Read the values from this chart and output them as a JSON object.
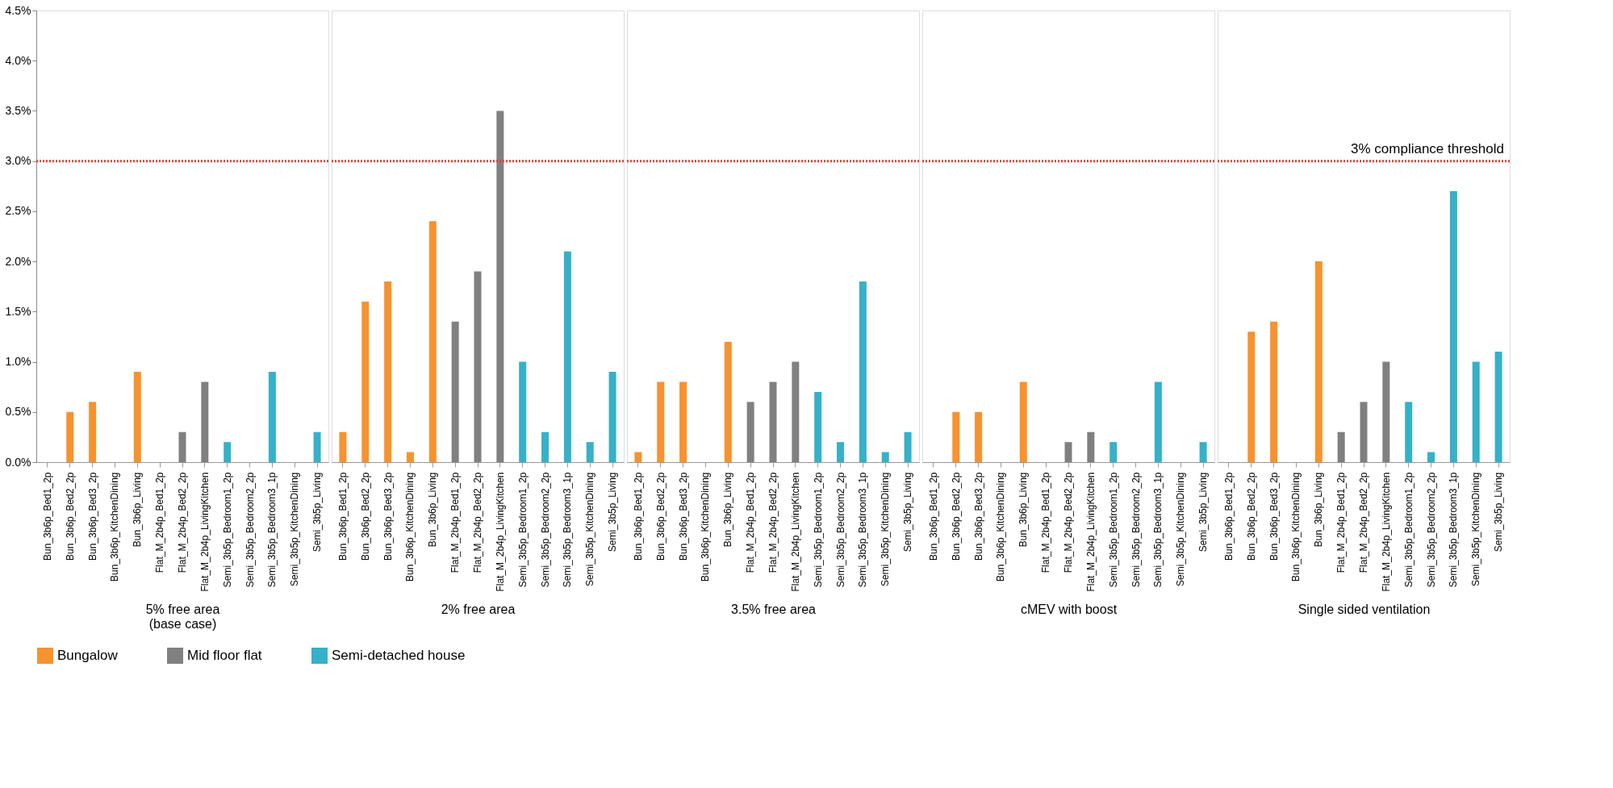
{
  "chart_data": [
    {
      "type": "bar",
      "xlabel": "5% free area\n(base case)",
      "categories": [
        "Bun_3b6p_Bed1_2p",
        "Bun_3b6p_Bed2_2p",
        "Bun_3b6p_Bed3_2p",
        "Bun_3b6p_KitchenDining",
        "Bun_3b6p_Living",
        "Flat_M_2b4p_Bed1_2p",
        "Flat_M_2b4p_Bed2_2p",
        "Flat_M_2b4p_LivingKitchen",
        "Semi_3b5p_Bedroom1_2p",
        "Semi_3b5p_Bedroom2_2p",
        "Semi_3b5p_Bedroom3_1p",
        "Semi_3b5p_KitchenDining",
        "Semi_3b5p_Living"
      ],
      "series": [
        {
          "name": "Bungalow",
          "color": "#f7922f",
          "values": [
            0,
            0.5,
            0.6,
            0,
            0.9,
            null,
            null,
            null,
            null,
            null,
            null,
            null,
            null
          ]
        },
        {
          "name": "Mid floor flat",
          "color": "#808080",
          "values": [
            null,
            null,
            null,
            null,
            null,
            0,
            0.3,
            0.8,
            null,
            null,
            null,
            null,
            null
          ]
        },
        {
          "name": "Semi-detached house",
          "color": "#35b1c9",
          "values": [
            null,
            null,
            null,
            null,
            null,
            null,
            null,
            null,
            0.2,
            0,
            0.9,
            0,
            0.3
          ]
        }
      ],
      "ylim": [
        0,
        4.5
      ],
      "yticks": [
        {
          "value": 0,
          "label": "0.0%"
        },
        {
          "value": 0.5,
          "label": "0.5%"
        },
        {
          "value": 1,
          "label": "1.0%"
        },
        {
          "value": 1.5,
          "label": "1.5%"
        },
        {
          "value": 2,
          "label": "2.0%"
        },
        {
          "value": 2.5,
          "label": "2.5%"
        },
        {
          "value": 3,
          "label": "3.0%"
        },
        {
          "value": 3.5,
          "label": "3.5%"
        },
        {
          "value": 4,
          "label": "4.0%"
        },
        {
          "value": 4.5,
          "label": "4.5%"
        }
      ],
      "ref_lines": [
        {
          "axis": "y",
          "value": 3,
          "color": "#e0403a",
          "line_style": "dotted"
        }
      ],
      "legend": "bottom",
      "grid": false
    },
    {
      "type": "bar",
      "xlabel": "2% free area",
      "categories": [
        "Bun_3b6p_Bed1_2p",
        "Bun_3b6p_Bed2_2p",
        "Bun_3b6p_Bed3_2p",
        "Bun_3b6p_KitchenDining",
        "Bun_3b6p_Living",
        "Flat_M_2b4p_Bed1_2p",
        "Flat_M_2b4p_Bed2_2p",
        "Flat_M_2b4p_LivingKitchen",
        "Semi_3b5p_Bedroom1_2p",
        "Semi_3b5p_Bedroom2_2p",
        "Semi_3b5p_Bedroom3_1p",
        "Semi_3b5p_KitchenDining",
        "Semi_3b5p_Living"
      ],
      "series": [
        {
          "color": "#f7922f",
          "values": [
            0.3,
            1.6,
            1.8,
            0.1,
            2.4,
            null,
            null,
            null,
            null,
            null,
            null,
            null,
            null
          ]
        },
        {
          "color": "#808080",
          "values": [
            null,
            null,
            null,
            null,
            null,
            1.4,
            1.9,
            3.5,
            null,
            null,
            null,
            null,
            null
          ]
        },
        {
          "color": "#35b1c9",
          "values": [
            null,
            null,
            null,
            null,
            null,
            null,
            null,
            null,
            1.0,
            0.3,
            2.1,
            0.2,
            0.9
          ]
        }
      ],
      "ylim": [
        0,
        4.5
      ],
      "tick_labels": "x",
      "ref_lines": [
        {
          "axis": "y",
          "value": 3,
          "color": "#e0403a",
          "line_style": "dotted"
        }
      ],
      "legend": false,
      "grid": false
    },
    {
      "type": "bar",
      "xlabel": "3.5% free area",
      "categories": [
        "Bun_3b6p_Bed1_2p",
        "Bun_3b6p_Bed2_2p",
        "Bun_3b6p_Bed3_2p",
        "Bun_3b6p_KitchenDining",
        "Bun_3b6p_Living",
        "Flat_M_2b4p_Bed1_2p",
        "Flat_M_2b4p_Bed2_2p",
        "Flat_M_2b4p_LivingKitchen",
        "Semi_3b5p_Bedroom1_2p",
        "Semi_3b5p_Bedroom2_2p",
        "Semi_3b5p_Bedroom3_1p",
        "Semi_3b5p_KitchenDining",
        "Semi_3b5p_Living"
      ],
      "series": [
        {
          "color": "#f7922f",
          "values": [
            0.1,
            0.8,
            0.8,
            0,
            1.2,
            null,
            null,
            null,
            null,
            null,
            null,
            null,
            null
          ]
        },
        {
          "color": "#808080",
          "values": [
            null,
            null,
            null,
            null,
            null,
            0.6,
            0.8,
            1.0,
            null,
            null,
            null,
            null,
            null
          ]
        },
        {
          "color": "#35b1c9",
          "values": [
            null,
            null,
            null,
            null,
            null,
            null,
            null,
            null,
            0.7,
            0.2,
            1.8,
            0.1,
            0.3
          ]
        }
      ],
      "ylim": [
        0,
        4.5
      ],
      "tick_labels": "x",
      "ref_lines": [
        {
          "axis": "y",
          "value": 3,
          "color": "#e0403a",
          "line_style": "dotted"
        }
      ],
      "legend": false,
      "grid": false
    },
    {
      "type": "bar",
      "xlabel": "cMEV with boost",
      "categories": [
        "Bun_3b6p_Bed1_2p",
        "Bun_3b6p_Bed2_2p",
        "Bun_3b6p_Bed3_2p",
        "Bun_3b6p_KitchenDining",
        "Bun_3b6p_Living",
        "Flat_M_2b4p_Bed1_2p",
        "Flat_M_2b4p_Bed2_2p",
        "Flat_M_2b4p_LivingKitchen",
        "Semi_3b5p_Bedroom1_2p",
        "Semi_3b5p_Bedroom2_2p",
        "Semi_3b5p_Bedroom3_1p",
        "Semi_3b5p_KitchenDining",
        "Semi_3b5p_Living"
      ],
      "series": [
        {
          "color": "#f7922f",
          "values": [
            0,
            0.5,
            0.5,
            0,
            0.8,
            null,
            null,
            null,
            null,
            null,
            null,
            null,
            null
          ]
        },
        {
          "color": "#808080",
          "values": [
            null,
            null,
            null,
            null,
            null,
            0,
            0.2,
            0.3,
            null,
            null,
            null,
            null,
            null
          ]
        },
        {
          "color": "#35b1c9",
          "values": [
            null,
            null,
            null,
            null,
            null,
            null,
            null,
            null,
            0.2,
            0,
            0.8,
            0,
            0.2
          ]
        }
      ],
      "ylim": [
        0,
        4.5
      ],
      "tick_labels": "x",
      "ref_lines": [
        {
          "axis": "y",
          "value": 3,
          "color": "#e0403a",
          "line_style": "dotted"
        }
      ],
      "legend": false,
      "grid": false
    },
    {
      "type": "bar",
      "xlabel": "Single sided ventilation",
      "categories": [
        "Bun_3b6p_Bed1_2p",
        "Bun_3b6p_Bed2_2p",
        "Bun_3b6p_Bed3_2p",
        "Bun_3b6p_KitchenDining",
        "Bun_3b6p_Living",
        "Flat_M_2b4p_Bed1_2p",
        "Flat_M_2b4p_Bed2_2p",
        "Flat_M_2b4p_LivingKitchen",
        "Semi_3b5p_Bedroom1_2p",
        "Semi_3b5p_Bedroom2_2p",
        "Semi_3b5p_Bedroom3_1p",
        "Semi_3b5p_KitchenDining",
        "Semi_3b5p_Living"
      ],
      "series": [
        {
          "color": "#f7922f",
          "values": [
            0,
            1.3,
            1.4,
            0,
            2.0,
            null,
            null,
            null,
            null,
            null,
            null,
            null,
            null
          ]
        },
        {
          "color": "#808080",
          "values": [
            null,
            null,
            null,
            null,
            null,
            0.3,
            0.6,
            1.0,
            null,
            null,
            null,
            null,
            null
          ]
        },
        {
          "color": "#35b1c9",
          "values": [
            null,
            null,
            null,
            null,
            null,
            null,
            null,
            null,
            0.6,
            0.1,
            2.7,
            1.0,
            1.1
          ]
        }
      ],
      "ylim": [
        0,
        4.5
      ],
      "tick_labels": "x",
      "ref_lines": [
        {
          "axis": "y",
          "value": 3,
          "color": "#e0403a",
          "line_style": "dotted",
          "label": "3% compliance threshold"
        }
      ],
      "legend": false,
      "grid": false
    }
  ]
}
